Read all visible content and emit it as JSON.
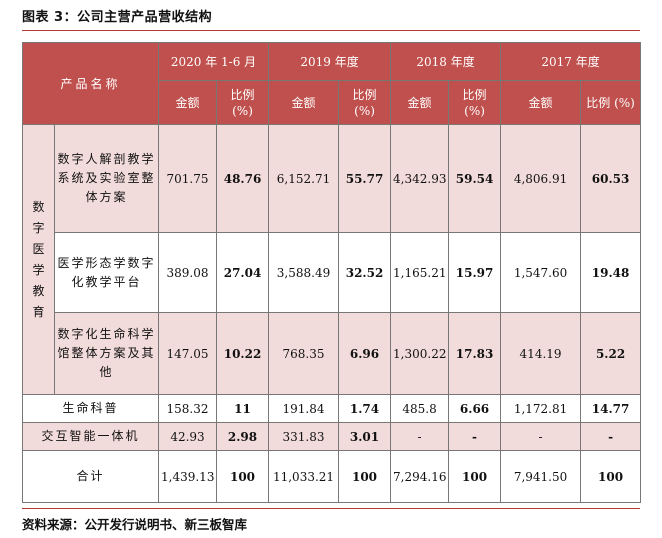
{
  "title": "图表 3：公司主营产品营收结构",
  "header": {
    "product_name": "产品名称",
    "periods": [
      "2020 年 1-6 月",
      "2019 年度",
      "2018 年度",
      "2017 年度"
    ],
    "amount": "金额",
    "ratio": "比例 (%)"
  },
  "category": "数字医学教育",
  "rows": [
    {
      "name": "数字人解剖教学系统及实验室整体方案",
      "v": [
        "701.75",
        "48.76",
        "6,152.71",
        "55.77",
        "4,342.93",
        "59.54",
        "4,806.91",
        "60.53"
      ]
    },
    {
      "name": "医学形态学数字化教学平台",
      "v": [
        "389.08",
        "27.04",
        "3,588.49",
        "32.52",
        "1,165.21",
        "15.97",
        "1,547.60",
        "19.48"
      ]
    },
    {
      "name": "数字化生命科学馆整体方案及其他",
      "v": [
        "147.05",
        "10.22",
        "768.35",
        "6.96",
        "1,300.22",
        "17.83",
        "414.19",
        "5.22"
      ]
    },
    {
      "name": "生命科普",
      "v": [
        "158.32",
        "11",
        "191.84",
        "1.74",
        "485.8",
        "6.66",
        "1,172.81",
        "14.77"
      ]
    },
    {
      "name": "交互智能一体机",
      "v": [
        "42.93",
        "2.98",
        "331.83",
        "3.01",
        "-",
        "-",
        "-",
        "-"
      ]
    },
    {
      "name": "合计",
      "v": [
        "1,439.13",
        "100",
        "11,033.21",
        "100",
        "7,294.16",
        "100",
        "7,941.50",
        "100"
      ]
    }
  ],
  "source": "资料来源：公开发行说明书、新三板智库"
}
